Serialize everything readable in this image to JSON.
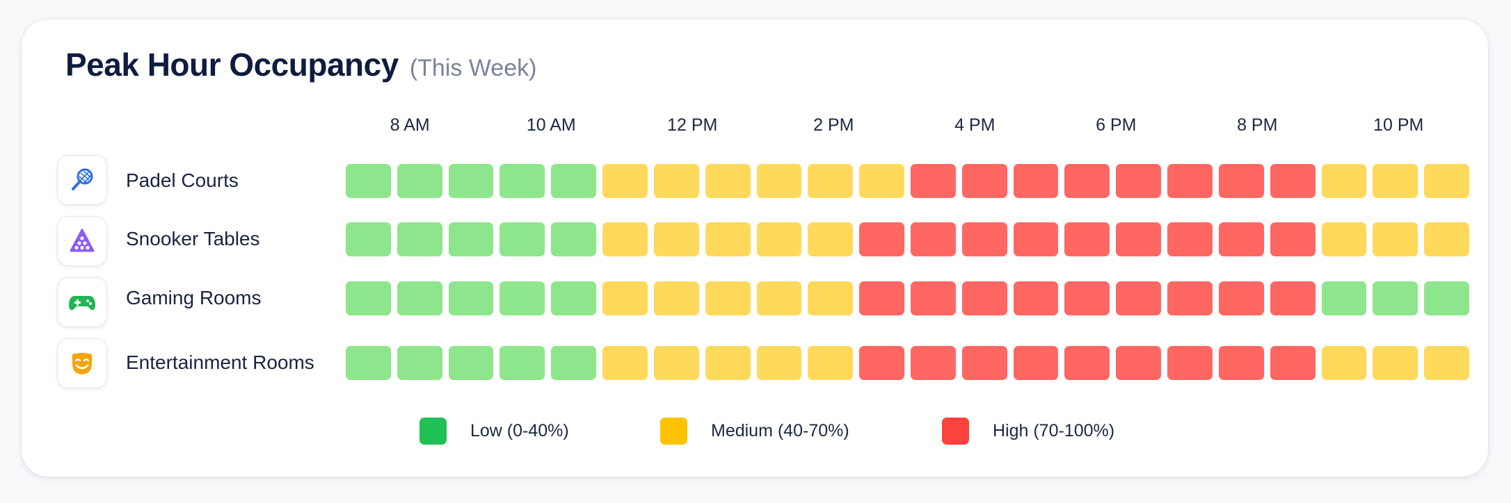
{
  "title": "Peak Hour Occupancy",
  "subtitle": "(This Week)",
  "colors": {
    "low": "#8ee68c",
    "medium": "#ffd95c",
    "high": "#ff6763",
    "legend_low": "#21c155",
    "legend_medium": "#fdc200",
    "legend_high": "#fb423e"
  },
  "chart_data": {
    "type": "heatmap",
    "title": "Peak Hour Occupancy",
    "subtitle": "(This Week)",
    "x_tick_labels": [
      "8 AM",
      "10 AM",
      "12 PM",
      "2 PM",
      "4 PM",
      "6 PM",
      "8 PM",
      "10 PM"
    ],
    "legend": [
      {
        "key": "low",
        "label": "Low (0-40%)"
      },
      {
        "key": "medium",
        "label": "Medium (40-70%)"
      },
      {
        "key": "high",
        "label": "High (70-100%)"
      }
    ],
    "rows": [
      {
        "label": "Padel Courts",
        "icon": "padel-racket-icon",
        "levels": [
          "low",
          "low",
          "low",
          "low",
          "low",
          "medium",
          "medium",
          "medium",
          "medium",
          "medium",
          "medium",
          "high",
          "high",
          "high",
          "high",
          "high",
          "high",
          "high",
          "high",
          "medium",
          "medium",
          "medium"
        ]
      },
      {
        "label": "Snooker Tables",
        "icon": "snooker-triangle-icon",
        "levels": [
          "low",
          "low",
          "low",
          "low",
          "low",
          "medium",
          "medium",
          "medium",
          "medium",
          "medium",
          "high",
          "high",
          "high",
          "high",
          "high",
          "high",
          "high",
          "high",
          "high",
          "medium",
          "medium",
          "medium"
        ]
      },
      {
        "label": "Gaming Rooms",
        "icon": "gamepad-icon",
        "levels": [
          "low",
          "low",
          "low",
          "low",
          "low",
          "medium",
          "medium",
          "medium",
          "medium",
          "medium",
          "high",
          "high",
          "high",
          "high",
          "high",
          "high",
          "high",
          "high",
          "high",
          "low",
          "low",
          "low"
        ]
      },
      {
        "label": "Entertainment Rooms",
        "icon": "theater-mask-icon",
        "levels": [
          "low",
          "low",
          "low",
          "low",
          "low",
          "medium",
          "medium",
          "medium",
          "medium",
          "medium",
          "high",
          "high",
          "high",
          "high",
          "high",
          "high",
          "high",
          "high",
          "high",
          "medium",
          "medium",
          "medium"
        ]
      }
    ]
  }
}
